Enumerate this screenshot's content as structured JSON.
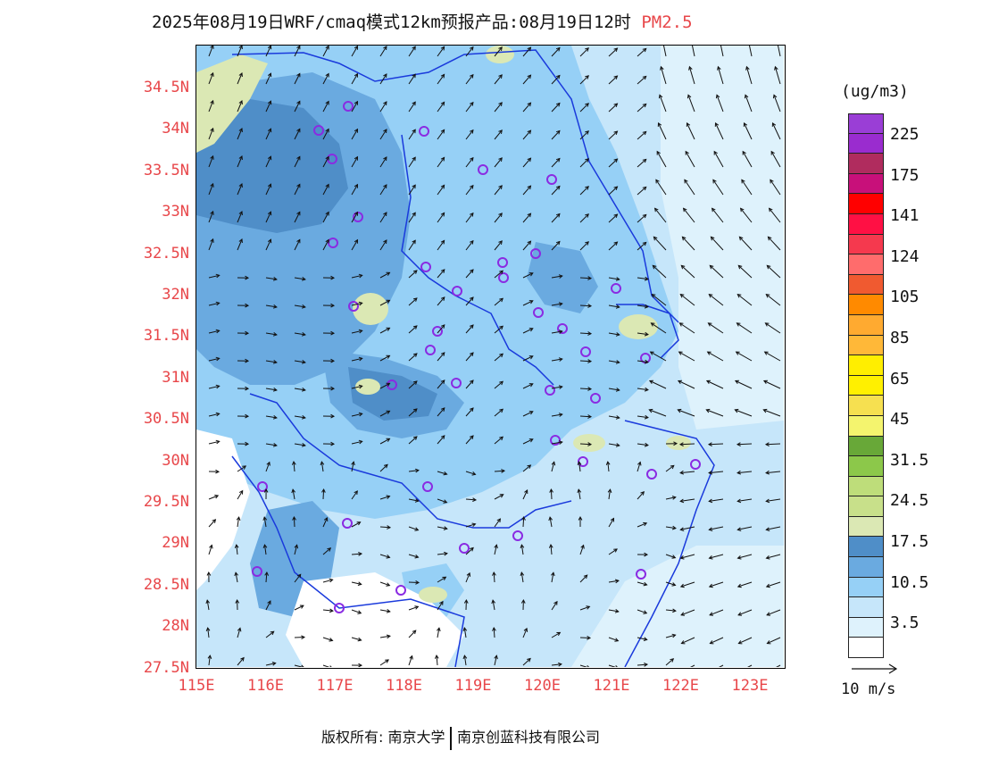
{
  "title": {
    "main": "2025年08月19日WRF/cmaq模式12km预报产品:08月19日12时",
    "variable": "PM2.5"
  },
  "axes": {
    "lat_labels": [
      "34.5N",
      "34N",
      "33.5N",
      "33N",
      "32.5N",
      "32N",
      "31.5N",
      "31N",
      "30.5N",
      "30N",
      "29.5N",
      "29N",
      "28.5N",
      "28N",
      "27.5N"
    ],
    "lon_labels": [
      "115E",
      "116E",
      "117E",
      "118E",
      "119E",
      "120E",
      "121E",
      "122E",
      "123E"
    ],
    "lon_range": [
      115,
      123.5
    ],
    "lat_range": [
      27.5,
      35.0
    ]
  },
  "legend": {
    "unit": "(ug/m3)",
    "colors": [
      "#9a3ed6",
      "#9a2ccf",
      "#b02c5e",
      "#c8107a",
      "#ff0000",
      "#ff1044",
      "#f5394e",
      "#ff6c6c",
      "#f05a30",
      "#ff8a00",
      "#ffaa30",
      "#ffb838",
      "#ffee00",
      "#fff000",
      "#f6e050",
      "#f4f46e",
      "#68a838",
      "#8cc84a",
      "#bedd7a",
      "#c8e08a",
      "#dbe8b4",
      "#4f8ec8",
      "#6aaae0",
      "#96d0f6",
      "#c6e6fa",
      "#def2fc",
      "#ffffff"
    ],
    "ticks": [
      "225",
      "175",
      "141",
      "124",
      "105",
      "85",
      "65",
      "45",
      "31.5",
      "24.5",
      "17.5",
      "10.5",
      "3.5"
    ]
  },
  "vector_reference": "10 m/s",
  "stations_visible": true,
  "footer": {
    "left": "版权所有: 南京大学",
    "right": "南京创蓝科技有限公司"
  }
}
